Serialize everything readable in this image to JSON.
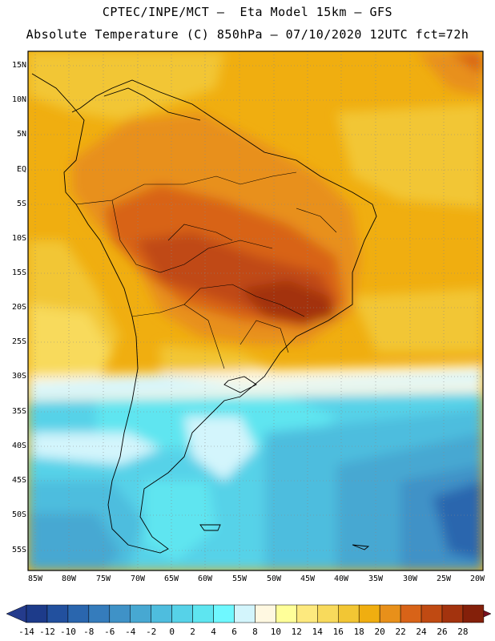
{
  "header": {
    "line1": "CPTEC/INPE/MCT –  Eta Model 15km – GFS",
    "line2": "Absolute Temperature (C) 850hPa – 07/10/2020 12UTC fct=72h"
  },
  "axes": {
    "lat_labels": [
      "15N",
      "10N",
      "5N",
      "EQ",
      "5S",
      "10S",
      "15S",
      "20S",
      "25S",
      "30S",
      "35S",
      "40S",
      "45S",
      "50S",
      "55S"
    ],
    "lon_labels": [
      "85W",
      "80W",
      "75W",
      "70W",
      "65W",
      "60W",
      "55W",
      "50W",
      "45W",
      "40W",
      "35W",
      "30W",
      "25W",
      "20W"
    ]
  },
  "colorbar": {
    "labels": [
      "-14",
      "-12",
      "-10",
      "-8",
      "-6",
      "-4",
      "-2",
      "0",
      "2",
      "4",
      "6",
      "8",
      "10",
      "12",
      "14",
      "16",
      "18",
      "20",
      "22",
      "24",
      "26",
      "28"
    ],
    "colors": [
      "#1d3b8a",
      "#22509e",
      "#2a66ae",
      "#357cbc",
      "#3f92c7",
      "#47a8d2",
      "#4ebdde",
      "#56d2e8",
      "#5ee5f0",
      "#6ff8ff",
      "#d3f5fc",
      "#fff8e1",
      "#ffff99",
      "#fde97e",
      "#f8da5c",
      "#f2c634",
      "#f0ae10",
      "#e8901a",
      "#d86318",
      "#c04a12",
      "#a3330e",
      "#84200a"
    ],
    "under_color": "#243b8c",
    "over_color": "#7a1020"
  }
}
